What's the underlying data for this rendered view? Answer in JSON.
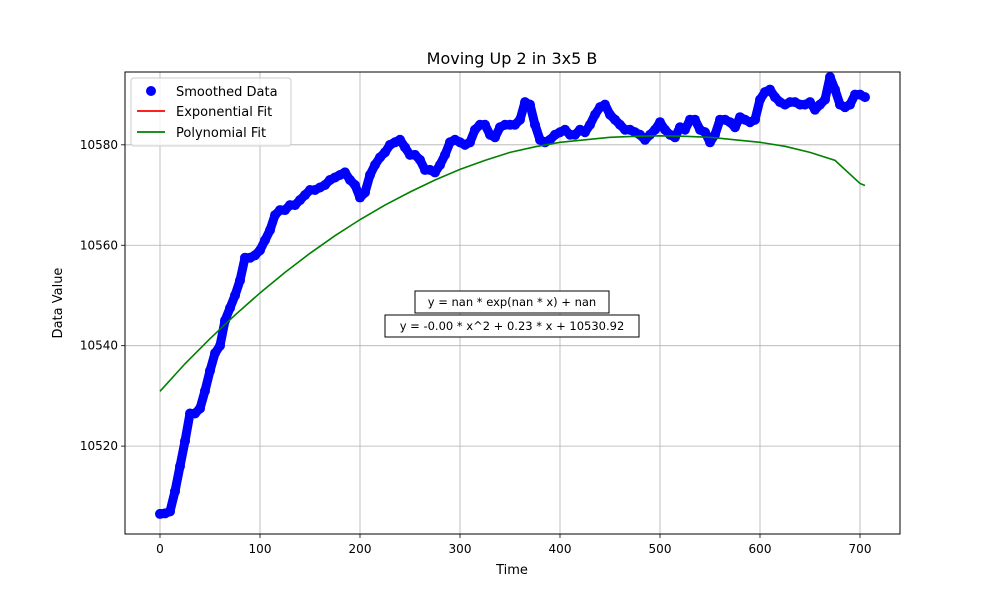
{
  "chart_data": {
    "type": "scatter",
    "title": "Moving Up 2 in 3x5 B",
    "xlabel": "Time",
    "ylabel": "Data Value",
    "xlim": [
      -35,
      740
    ],
    "ylim": [
      10502.5,
      10594.5
    ],
    "xticks": [
      0,
      100,
      200,
      300,
      400,
      500,
      600,
      700
    ],
    "yticks": [
      10520,
      10540,
      10560,
      10580
    ],
    "grid": true,
    "legend_position": "top-left",
    "series": [
      {
        "name": "Smoothed Data",
        "kind": "points",
        "color": "#0000ff",
        "x": [
          0,
          5,
          10,
          15,
          20,
          25,
          30,
          35,
          40,
          45,
          50,
          55,
          60,
          65,
          70,
          75,
          80,
          85,
          90,
          95,
          100,
          105,
          110,
          115,
          120,
          125,
          130,
          135,
          140,
          145,
          150,
          155,
          160,
          165,
          170,
          175,
          180,
          185,
          190,
          195,
          200,
          205,
          210,
          215,
          220,
          225,
          230,
          235,
          240,
          245,
          250,
          255,
          260,
          265,
          270,
          275,
          280,
          285,
          290,
          295,
          300,
          305,
          310,
          315,
          320,
          325,
          330,
          335,
          340,
          345,
          350,
          355,
          360,
          365,
          370,
          375,
          380,
          385,
          390,
          395,
          400,
          405,
          410,
          415,
          420,
          425,
          430,
          435,
          440,
          445,
          450,
          455,
          460,
          465,
          470,
          475,
          480,
          485,
          490,
          495,
          500,
          505,
          510,
          515,
          520,
          525,
          530,
          535,
          540,
          545,
          550,
          555,
          560,
          565,
          570,
          575,
          580,
          585,
          590,
          595,
          600,
          605,
          610,
          615,
          620,
          625,
          630,
          635,
          640,
          645,
          650,
          655,
          660,
          665,
          670,
          675,
          680,
          685,
          690,
          695,
          700,
          705
        ],
        "y": [
          10506.5,
          10506.6,
          10507,
          10511,
          10516,
          10521,
          10526.5,
          10526.5,
          10527.5,
          10531,
          10535,
          10538.5,
          10540,
          10545,
          10547.5,
          10550,
          10553,
          10557.5,
          10557.5,
          10558,
          10559,
          10561,
          10563,
          10566,
          10567,
          10567,
          10568,
          10568,
          10569,
          10570,
          10571,
          10571,
          10571.5,
          10572,
          10573,
          10573.5,
          10574,
          10574.5,
          10573,
          10572,
          10569.5,
          10570.5,
          10574,
          10576,
          10577.5,
          10578.5,
          10580,
          10580.5,
          10581,
          10579.5,
          10578,
          10578,
          10577,
          10575,
          10575,
          10574.5,
          10576,
          10578,
          10580.5,
          10581,
          10580.5,
          10580,
          10580.5,
          10583,
          10584,
          10584,
          10582,
          10581.5,
          10583.5,
          10584,
          10584,
          10584,
          10585,
          10588.5,
          10588,
          10584,
          10581,
          10580.5,
          10581,
          10582,
          10582.5,
          10583,
          10582,
          10582,
          10583,
          10582.5,
          10584,
          10586,
          10587.5,
          10588,
          10586,
          10585,
          10584,
          10583,
          10583,
          10582.5,
          10582,
          10581,
          10582,
          10583,
          10584.5,
          10583,
          10582,
          10581.5,
          10583.5,
          10583,
          10585,
          10585,
          10583,
          10582.5,
          10580.5,
          10582,
          10585,
          10585,
          10584.5,
          10583.5,
          10585.5,
          10585,
          10584.5,
          10585,
          10589,
          10590.5,
          10591,
          10589.5,
          10588.5,
          10588,
          10588.5,
          10588.5,
          10588,
          10588,
          10588.5,
          10587,
          10588,
          10589,
          10593.5,
          10591,
          10588,
          10587.5,
          10588,
          10590,
          10590,
          10589.5
        ]
      },
      {
        "name": "Exponential Fit",
        "kind": "line",
        "color": "#ff0000",
        "x": [],
        "y": []
      },
      {
        "name": "Polynomial Fit",
        "kind": "line",
        "color": "#008000",
        "x": [
          0,
          25,
          50,
          75,
          100,
          125,
          150,
          175,
          200,
          225,
          250,
          275,
          300,
          325,
          350,
          375,
          400,
          425,
          450,
          475,
          500,
          525,
          550,
          575,
          600,
          625,
          650,
          675,
          700,
          705
        ],
        "y": [
          10530.92,
          10536.4,
          10541.4,
          10546.1,
          10550.5,
          10554.6,
          10558.4,
          10561.9,
          10565.1,
          10568.0,
          10570.6,
          10573.0,
          10575.1,
          10576.9,
          10578.5,
          10579.6,
          10580.5,
          10581.0,
          10581.5,
          10581.7,
          10581.8,
          10581.7,
          10581.5,
          10581.0,
          10580.5,
          10579.7,
          10578.5,
          10576.9,
          10572.3,
          10571.9
        ]
      }
    ],
    "annotations": [
      "y = nan * exp(nan * x) + nan",
      "y = -0.00 * x^2 + 0.23 * x + 10530.92"
    ]
  }
}
